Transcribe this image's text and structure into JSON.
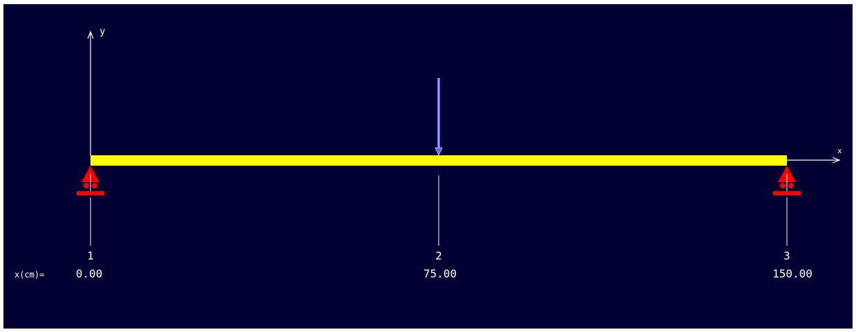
{
  "axes": {
    "y_label": "y",
    "x_label": "x",
    "x_unit_label": "x(cm)="
  },
  "beam": {
    "color": "#ffff00"
  },
  "nodes": [
    {
      "id": "1",
      "x": "0.00"
    },
    {
      "id": "2",
      "x": "75.00"
    },
    {
      "id": "3",
      "x": "150.00"
    }
  ],
  "supports": [
    {
      "type": "roller",
      "node": "1",
      "color": "#ff0000"
    },
    {
      "type": "roller",
      "node": "3",
      "color": "#ff0000"
    }
  ],
  "loads": [
    {
      "type": "point",
      "node": "2",
      "direction": "down",
      "color": "#6666ff"
    }
  ],
  "colors": {
    "background": "#000033",
    "lines": "#ffffff"
  }
}
